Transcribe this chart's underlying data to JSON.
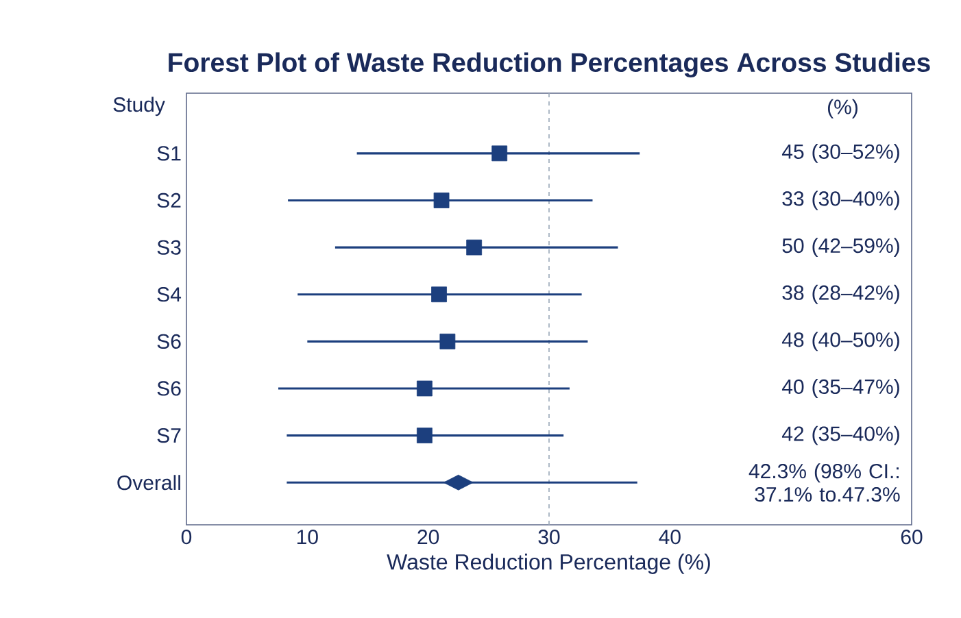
{
  "chart_data": {
    "type": "scatter",
    "orientation": "horizontal",
    "title": "Forest Plot of Waste Reduction Percentages Across Studies",
    "xlabel": "Waste Reduction Percentage (%)",
    "categories": [
      "S1",
      "S2",
      "S3",
      "S4",
      "S6",
      "S6",
      "S7",
      "Overall"
    ],
    "series": [
      {
        "color": "#1c3f7e",
        "marker": "square",
        "values": [
          25.9,
          21.1,
          23.8,
          20.9,
          21.6,
          19.7,
          19.7,
          null
        ],
        "errors": [
          [
            14.1,
            37.5
          ],
          [
            8.4,
            33.6
          ],
          [
            12.3,
            35.7
          ],
          [
            9.2,
            32.7
          ],
          [
            10.0,
            33.2
          ],
          [
            7.6,
            31.7
          ],
          [
            8.3,
            31.2
          ],
          null
        ]
      },
      {
        "color": "#1c3f7e",
        "marker": "diamond",
        "values": [
          null,
          null,
          null,
          null,
          null,
          null,
          null,
          22.5
        ],
        "errors": [
          null,
          null,
          null,
          null,
          null,
          null,
          null,
          [
            8.3,
            37.3
          ]
        ]
      }
    ],
    "xlim": [
      0,
      60
    ],
    "xticks": [
      0,
      10,
      20,
      30,
      40,
      60
    ],
    "ref_lines": [
      {
        "axis": "x",
        "value": 30,
        "color": "#9aa8b8",
        "line_style": "dashed"
      }
    ],
    "annotations": [
      "Study",
      "(%)",
      "45 (30–52%)",
      "33 (30–40%)",
      "50 (42–59%)",
      "38 (28–42%)",
      "48 (40–50%)",
      "40 (35–47%)",
      "42 (35–40%)",
      "42.3% (98% CI.: 37.1% to.47.3%"
    ]
  }
}
